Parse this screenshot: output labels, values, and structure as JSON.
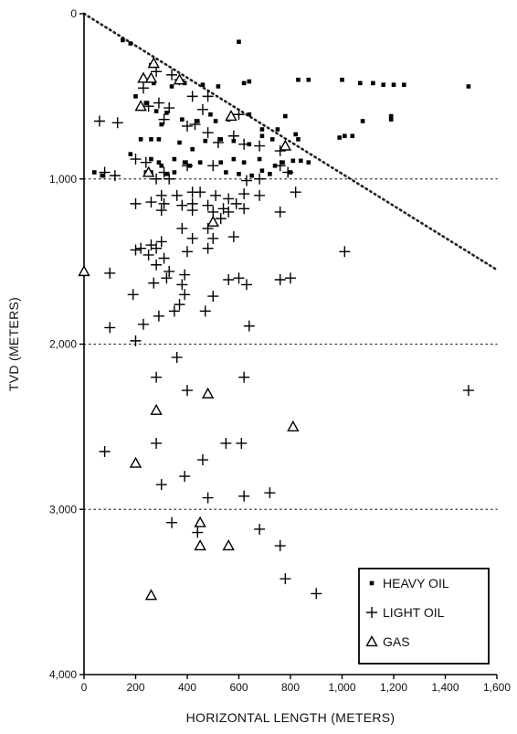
{
  "chart_data": {
    "type": "scatter",
    "title": "",
    "xlabel": "HORIZONTAL LENGTH (METERS)",
    "ylabel": "TVD (METERS)",
    "xlim": [
      0,
      1600
    ],
    "ylim": [
      0,
      4000
    ],
    "y_inverted": true,
    "x_ticks": [
      0,
      200,
      400,
      600,
      800,
      1000,
      1200,
      1400,
      1600
    ],
    "x_tick_labels": [
      "0",
      "200",
      "400",
      "600",
      "800",
      "1,000",
      "1,200",
      "1,400",
      "1,600"
    ],
    "y_ticks": [
      0,
      1000,
      2000,
      3000,
      4000
    ],
    "y_tick_labels": [
      "0",
      "1,000",
      "2,000",
      "3,000",
      "4,000"
    ],
    "grid": "dotted horizontal lines at 1,000, 2,000 and 3,000",
    "legend_position": "bottom-right",
    "reference_line": {
      "style": "dotted",
      "points": [
        [
          0,
          0
        ],
        [
          1600,
          1550
        ]
      ]
    },
    "series": [
      {
        "name": "HEAVY OIL",
        "marker": "square",
        "points": [
          [
            150,
            160
          ],
          [
            180,
            180
          ],
          [
            260,
            310
          ],
          [
            600,
            170
          ],
          [
            270,
            420
          ],
          [
            340,
            440
          ],
          [
            390,
            420
          ],
          [
            460,
            430
          ],
          [
            520,
            440
          ],
          [
            620,
            420
          ],
          [
            640,
            410
          ],
          [
            830,
            400
          ],
          [
            870,
            400
          ],
          [
            1000,
            400
          ],
          [
            1070,
            420
          ],
          [
            1120,
            420
          ],
          [
            1160,
            430
          ],
          [
            1200,
            430
          ],
          [
            1240,
            430
          ],
          [
            1490,
            440
          ],
          [
            200,
            500
          ],
          [
            240,
            540
          ],
          [
            280,
            590
          ],
          [
            320,
            600
          ],
          [
            380,
            640
          ],
          [
            440,
            650
          ],
          [
            490,
            610
          ],
          [
            510,
            650
          ],
          [
            560,
            640
          ],
          [
            640,
            610
          ],
          [
            690,
            700
          ],
          [
            750,
            700
          ],
          [
            780,
            620
          ],
          [
            820,
            730
          ],
          [
            1040,
            740
          ],
          [
            1080,
            650
          ],
          [
            1190,
            620
          ],
          [
            1190,
            640
          ],
          [
            300,
            670
          ],
          [
            220,
            760
          ],
          [
            260,
            760
          ],
          [
            290,
            760
          ],
          [
            370,
            780
          ],
          [
            420,
            820
          ],
          [
            470,
            770
          ],
          [
            530,
            760
          ],
          [
            580,
            770
          ],
          [
            640,
            790
          ],
          [
            690,
            740
          ],
          [
            730,
            760
          ],
          [
            830,
            760
          ],
          [
            870,
            900
          ],
          [
            990,
            750
          ],
          [
            1010,
            740
          ],
          [
            180,
            850
          ],
          [
            260,
            880
          ],
          [
            290,
            900
          ],
          [
            300,
            920
          ],
          [
            350,
            880
          ],
          [
            390,
            900
          ],
          [
            410,
            920
          ],
          [
            450,
            900
          ],
          [
            530,
            900
          ],
          [
            580,
            880
          ],
          [
            620,
            900
          ],
          [
            680,
            880
          ],
          [
            740,
            920
          ],
          [
            770,
            900
          ],
          [
            810,
            890
          ],
          [
            840,
            890
          ],
          [
            40,
            960
          ],
          [
            70,
            980
          ],
          [
            240,
            960
          ],
          [
            260,
            960
          ],
          [
            320,
            970
          ],
          [
            350,
            960
          ],
          [
            550,
            960
          ],
          [
            600,
            970
          ],
          [
            650,
            980
          ],
          [
            690,
            950
          ],
          [
            720,
            970
          ],
          [
            800,
            960
          ]
        ]
      },
      {
        "name": "LIGHT OIL",
        "marker": "plus",
        "points": [
          [
            280,
            350
          ],
          [
            340,
            370
          ],
          [
            370,
            400
          ],
          [
            230,
            450
          ],
          [
            420,
            500
          ],
          [
            480,
            500
          ],
          [
            290,
            540
          ],
          [
            250,
            560
          ],
          [
            330,
            570
          ],
          [
            460,
            580
          ],
          [
            600,
            610
          ],
          [
            130,
            660
          ],
          [
            60,
            650
          ],
          [
            310,
            640
          ],
          [
            400,
            680
          ],
          [
            430,
            670
          ],
          [
            480,
            720
          ],
          [
            580,
            740
          ],
          [
            520,
            780
          ],
          [
            620,
            790
          ],
          [
            680,
            800
          ],
          [
            760,
            830
          ],
          [
            200,
            880
          ],
          [
            240,
            900
          ],
          [
            400,
            920
          ],
          [
            500,
            920
          ],
          [
            760,
            920
          ],
          [
            790,
            960
          ],
          [
            80,
            960
          ],
          [
            120,
            980
          ],
          [
            310,
            960
          ],
          [
            280,
            1000
          ],
          [
            330,
            1000
          ],
          [
            630,
            1010
          ],
          [
            680,
            1000
          ],
          [
            300,
            1100
          ],
          [
            360,
            1100
          ],
          [
            420,
            1080
          ],
          [
            450,
            1080
          ],
          [
            510,
            1100
          ],
          [
            560,
            1120
          ],
          [
            620,
            1090
          ],
          [
            680,
            1100
          ],
          [
            820,
            1080
          ],
          [
            260,
            1140
          ],
          [
            310,
            1150
          ],
          [
            380,
            1160
          ],
          [
            420,
            1150
          ],
          [
            480,
            1160
          ],
          [
            540,
            1180
          ],
          [
            590,
            1150
          ],
          [
            200,
            1150
          ],
          [
            300,
            1190
          ],
          [
            420,
            1190
          ],
          [
            500,
            1200
          ],
          [
            560,
            1200
          ],
          [
            620,
            1180
          ],
          [
            760,
            1200
          ],
          [
            380,
            1300
          ],
          [
            480,
            1300
          ],
          [
            530,
            1240
          ],
          [
            300,
            1380
          ],
          [
            420,
            1360
          ],
          [
            500,
            1360
          ],
          [
            580,
            1350
          ],
          [
            200,
            1430
          ],
          [
            220,
            1420
          ],
          [
            260,
            1400
          ],
          [
            280,
            1420
          ],
          [
            400,
            1440
          ],
          [
            480,
            1420
          ],
          [
            250,
            1460
          ],
          [
            310,
            1480
          ],
          [
            280,
            1520
          ],
          [
            330,
            1560
          ],
          [
            390,
            1580
          ],
          [
            100,
            1570
          ],
          [
            270,
            1630
          ],
          [
            320,
            1600
          ],
          [
            380,
            1640
          ],
          [
            560,
            1610
          ],
          [
            600,
            1600
          ],
          [
            630,
            1640
          ],
          [
            760,
            1610
          ],
          [
            800,
            1600
          ],
          [
            190,
            1700
          ],
          [
            390,
            1700
          ],
          [
            500,
            1710
          ],
          [
            370,
            1760
          ],
          [
            350,
            1800
          ],
          [
            470,
            1800
          ],
          [
            290,
            1830
          ],
          [
            100,
            1900
          ],
          [
            230,
            1880
          ],
          [
            640,
            1890
          ],
          [
            200,
            1980
          ],
          [
            360,
            2080
          ],
          [
            620,
            2200
          ],
          [
            280,
            2200
          ],
          [
            400,
            2280
          ],
          [
            1010,
            1440
          ],
          [
            1490,
            2280
          ],
          [
            280,
            2600
          ],
          [
            550,
            2600
          ],
          [
            610,
            2600
          ],
          [
            80,
            2650
          ],
          [
            460,
            2700
          ],
          [
            390,
            2800
          ],
          [
            300,
            2850
          ],
          [
            480,
            2930
          ],
          [
            620,
            2920
          ],
          [
            720,
            2900
          ],
          [
            340,
            3080
          ],
          [
            440,
            3140
          ],
          [
            680,
            3120
          ],
          [
            760,
            3220
          ],
          [
            780,
            3420
          ],
          [
            900,
            3510
          ]
        ]
      },
      {
        "name": "GAS",
        "marker": "triangle",
        "points": [
          [
            270,
            300
          ],
          [
            370,
            400
          ],
          [
            230,
            390
          ],
          [
            260,
            390
          ],
          [
            220,
            560
          ],
          [
            570,
            620
          ],
          [
            780,
            800
          ],
          [
            250,
            960
          ],
          [
            500,
            1260
          ],
          [
            0,
            1560
          ],
          [
            280,
            2400
          ],
          [
            480,
            2300
          ],
          [
            810,
            2500
          ],
          [
            200,
            2720
          ],
          [
            450,
            3080
          ],
          [
            450,
            3220
          ],
          [
            560,
            3220
          ],
          [
            260,
            3520
          ]
        ]
      }
    ]
  }
}
